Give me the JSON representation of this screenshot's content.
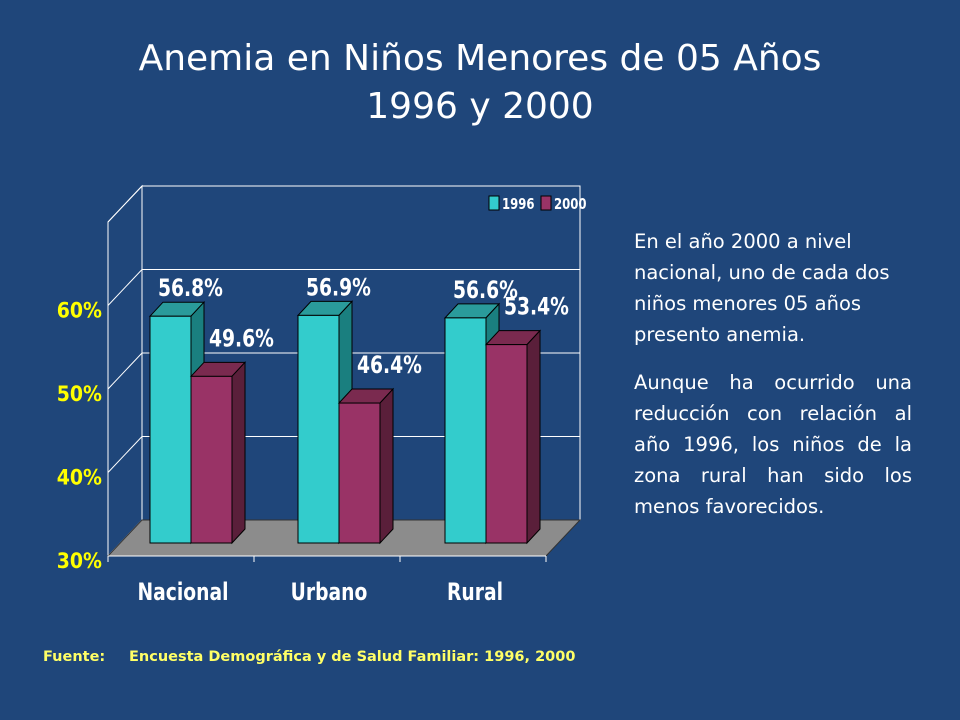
{
  "title_line1": "Anemia en Niños Menores de 05 Años",
  "title_line2": "1996 y 2000",
  "chart_data": {
    "type": "bar",
    "categories": [
      "Nacional",
      "Urbano",
      "Rural"
    ],
    "series": [
      {
        "name": "1996",
        "values": [
          56.8,
          56.9,
          56.6
        ],
        "labels": [
          "56.8%",
          "56.9%",
          "56.6%"
        ],
        "color": "#33cccc"
      },
      {
        "name": "2000",
        "values": [
          49.6,
          46.4,
          53.4
        ],
        "labels": [
          "49.6%",
          "46.4%",
          "53.4%"
        ],
        "color": "#993366"
      }
    ],
    "ylim": [
      30,
      70
    ],
    "yticks": [
      "30%",
      "40%",
      "50%",
      "60%"
    ],
    "ytick_values": [
      30,
      40,
      50,
      60
    ],
    "legend_position": "top-right",
    "grid": true,
    "three_d": true
  },
  "paragraph1": "En el año 2000 a nivel nacional, uno de cada dos niños menores 05 años presento anemia.",
  "paragraph2": "Aunque ha ocurrido una reducción con relación al año 1996, los niños de la zona rural han sido los menos favorecidos.",
  "source_label": "Fuente:",
  "source_text": "Encuesta Demográfica y de Salud Familiar: 1996, 2000"
}
